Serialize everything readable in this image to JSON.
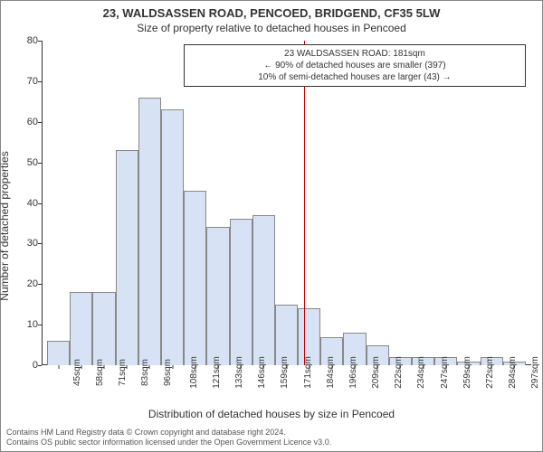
{
  "title": {
    "line1": "23, WALDSASSEN ROAD, PENCOED, BRIDGEND, CF35 5LW",
    "line2": "Size of property relative to detached houses in Pencoed"
  },
  "axes": {
    "ylabel": "Number of detached properties",
    "xlabel": "Distribution of detached houses by size in Pencoed",
    "ylim": [
      0,
      80
    ],
    "ytick_step": 10,
    "yticks": [
      0,
      10,
      20,
      30,
      40,
      50,
      60,
      70,
      80
    ],
    "x_categories": [
      "45sqm",
      "58sqm",
      "71sqm",
      "83sqm",
      "96sqm",
      "108sqm",
      "121sqm",
      "133sqm",
      "146sqm",
      "159sqm",
      "171sqm",
      "184sqm",
      "196sqm",
      "209sqm",
      "222sqm",
      "234sqm",
      "247sqm",
      "259sqm",
      "272sqm",
      "284sqm",
      "297sqm"
    ]
  },
  "chart": {
    "type": "histogram",
    "bar_color": "#d7e3f4",
    "bar_border_color": "#888888",
    "background_color": "#ffffff",
    "axis_color": "#333333",
    "values": [
      6,
      18,
      18,
      53,
      66,
      63,
      43,
      34,
      36,
      37,
      15,
      14,
      7,
      8,
      5,
      2,
      2,
      2,
      1,
      2,
      1
    ],
    "label_fontsize": 12,
    "tick_fontsize": 11,
    "xtick_rotation": -90
  },
  "marker": {
    "position_sqm": 181,
    "color": "#c00000",
    "annotation": {
      "line1": "23 WALDSASSEN ROAD: 181sqm",
      "line2": "← 90% of detached houses are smaller (397)",
      "line3": "10% of semi-detached houses are larger (43) →",
      "border_color": "#333333",
      "background_color": "#ffffff",
      "fontsize": 10
    }
  },
  "footer": {
    "line1": "Contains HM Land Registry data © Crown copyright and database right 2024.",
    "line2": "Contains OS public sector information licensed under the Open Government Licence v3.0."
  }
}
